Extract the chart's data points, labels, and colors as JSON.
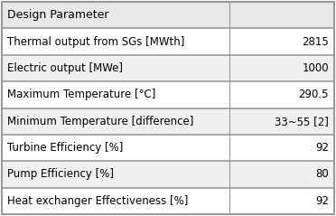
{
  "headers": [
    "Design Parameter",
    ""
  ],
  "rows": [
    [
      "Thermal output from SGs [MWth]",
      "2815"
    ],
    [
      "Electric output [MWe]",
      "1000"
    ],
    [
      "Maximum Temperature [°C]",
      "290.5"
    ],
    [
      "Minimum Temperature [difference]",
      "33~55 [2]"
    ],
    [
      "Turbine Efficiency [%]",
      "92"
    ],
    [
      "Pump Efficiency [%]",
      "80"
    ],
    [
      "Heat exchanger Effectiveness [%]",
      "92"
    ]
  ],
  "header_bg": "#e8e8e8",
  "row_bg_odd": "#ffffff",
  "row_bg_even": "#f0f0f0",
  "border_color": "#999999",
  "text_color": "#000000",
  "col_split": 0.685,
  "font_size": 8.5,
  "header_font_size": 9.0
}
